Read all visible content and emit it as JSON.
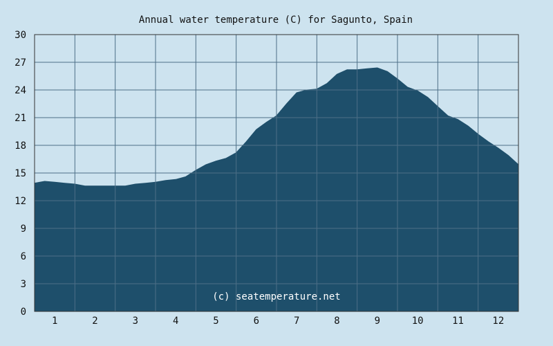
{
  "chart_data": {
    "type": "area",
    "title": "Annual water temperature (C) for Sagunto, Spain",
    "xlabel": "",
    "ylabel": "",
    "x_tick_labels": [
      "1",
      "2",
      "3",
      "4",
      "5",
      "6",
      "7",
      "8",
      "9",
      "10",
      "11",
      "12"
    ],
    "y_ticks": [
      0,
      3,
      6,
      9,
      12,
      15,
      18,
      21,
      24,
      27,
      30
    ],
    "ylim": [
      0,
      30
    ],
    "xlim": [
      0,
      12
    ],
    "grid": true,
    "credit": "(c) seatemperature.net",
    "colors": {
      "fill": "#1e4f6b",
      "background": "#cde3ef",
      "grid": "#4d6f87",
      "axis": "#333333"
    },
    "series": [
      {
        "x": [
          0.0,
          0.25,
          0.5,
          0.75,
          1.0,
          1.25,
          1.5,
          1.75,
          2.0,
          2.25,
          2.5,
          2.75,
          3.0,
          3.25,
          3.5,
          3.75,
          4.0,
          4.25,
          4.5,
          4.75,
          5.0,
          5.25,
          5.5,
          5.75,
          6.0,
          6.25,
          6.5,
          6.75,
          7.0,
          7.25,
          7.5,
          7.75,
          8.0,
          8.25,
          8.5,
          8.75,
          9.0,
          9.25,
          9.5,
          9.75,
          10.0,
          10.25,
          10.5,
          10.75,
          11.0,
          11.25,
          11.5,
          11.75,
          12.0
        ],
        "values": [
          13.9,
          14.1,
          14.0,
          13.9,
          13.8,
          13.6,
          13.6,
          13.6,
          13.6,
          13.6,
          13.8,
          13.9,
          14.0,
          14.2,
          14.3,
          14.6,
          15.3,
          15.9,
          16.3,
          16.6,
          17.2,
          18.4,
          19.7,
          20.5,
          21.2,
          22.5,
          23.7,
          24.0,
          24.1,
          24.7,
          25.7,
          26.2,
          26.2,
          26.3,
          26.4,
          26.0,
          25.2,
          24.3,
          23.9,
          23.2,
          22.2,
          21.2,
          20.8,
          20.1,
          19.2,
          18.4,
          17.7,
          16.9,
          15.9
        ]
      }
    ]
  }
}
